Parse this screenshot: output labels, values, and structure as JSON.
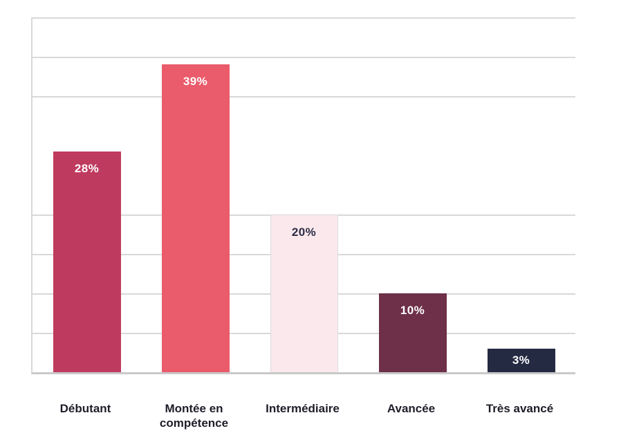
{
  "chart_data": {
    "type": "bar",
    "title": "",
    "xlabel": "",
    "ylabel": "",
    "categories": [
      "Débutant",
      "Montée en compétence",
      "Intermédiaire",
      "Avancée",
      "Très avancé"
    ],
    "values": [
      28,
      39,
      20,
      10,
      3
    ],
    "value_labels": [
      "28%",
      "39%",
      "20%",
      "10%",
      "3%"
    ],
    "unit": "%",
    "ylim": [
      0,
      45
    ],
    "gridline_step_percent": 5,
    "visible_gridline_values": [
      45,
      40,
      35,
      20,
      15,
      10,
      5
    ],
    "grid": "horizontal-only",
    "legend": null,
    "bar_colors": [
      "#BF3A5F",
      "#EA5B6B",
      "#FAE8EC",
      "#6D3048",
      "#242A42"
    ],
    "value_label_colors": [
      "#FFFFFF",
      "#FFFFFF",
      "#2B2D45",
      "#FFFFFF",
      "#FFFFFF"
    ],
    "light_bar_bordered": [
      false,
      false,
      true,
      false,
      false
    ],
    "colors": {
      "gridline": "#D8D8D8",
      "baseline": "#C9C9C9",
      "axis_line": "#D8D8D8",
      "category_label": "#1E1E2A",
      "light_bar_border": "#DADADA",
      "background": "#FFFFFF"
    }
  }
}
